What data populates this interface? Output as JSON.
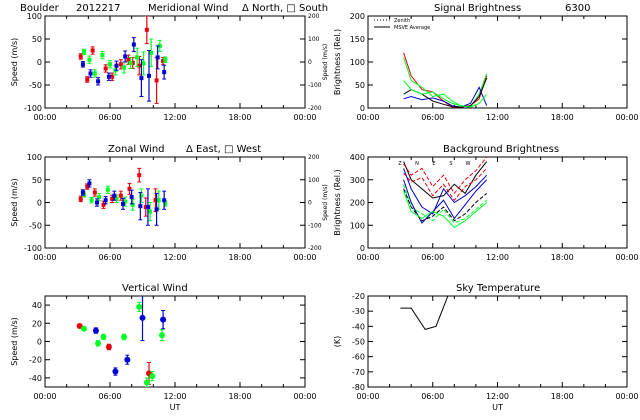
{
  "header": {
    "site": "Boulder",
    "date": "2012217",
    "meridional_title": "Meridional Wind",
    "meridional_legend": "Δ North, □ South"
  },
  "titles": {
    "zonal": "Zonal Wind",
    "zonal_legend": "Δ East, □ West",
    "vertical": "Vertical Wind",
    "signal": "Signal Brightness",
    "signal_wavelength": "6300",
    "background": "Background Brightness",
    "sky": "Sky Temperature"
  },
  "xaxis": {
    "label": "UT",
    "ticks": [
      "00:00",
      "06:00",
      "12:00",
      "18:00",
      "00:00"
    ]
  },
  "colors": {
    "red": "#e8000b",
    "green": "#00ff22",
    "blue": "#0000d0",
    "black": "#000000"
  },
  "chart_data": [
    {
      "id": "meridional",
      "type": "scatter",
      "title": "Meridional Wind",
      "ylabel": "Speed (m/s)",
      "y2label": "Speed (m/s)",
      "xlabel": "",
      "ylim": [
        -100,
        100
      ],
      "y2lim": [
        -200,
        200
      ],
      "yticks": [
        "100",
        "50",
        "0",
        "-50",
        "-100"
      ],
      "y2ticks": [
        "200",
        "100",
        "0",
        "-100",
        "-200"
      ],
      "series": [
        {
          "color": "red",
          "x": [
            3.3,
            3.9,
            4.4,
            5.6,
            6.2,
            7.0,
            7.7,
            8.1,
            8.7,
            9.4,
            10.3,
            10.9
          ],
          "y": [
            12,
            -38,
            25,
            -14,
            -32,
            -5,
            5,
            -2,
            -8,
            70,
            -40,
            2
          ],
          "err": [
            6,
            6,
            8,
            8,
            8,
            10,
            10,
            12,
            20,
            30,
            50,
            8
          ]
        },
        {
          "color": "green",
          "x": [
            3.6,
            4.1,
            4.6,
            5.3,
            6.0,
            6.5,
            7.3,
            7.9,
            8.5,
            9.1,
            9.8,
            10.6,
            11.1
          ],
          "y": [
            22,
            5,
            -25,
            15,
            -5,
            -18,
            -12,
            -2,
            10,
            -3,
            20,
            35,
            5
          ],
          "err": [
            6,
            8,
            8,
            8,
            8,
            10,
            12,
            12,
            20,
            25,
            30,
            12,
            6
          ]
        },
        {
          "color": "blue",
          "x": [
            3.5,
            4.2,
            4.9,
            5.9,
            6.6,
            7.4,
            8.2,
            8.9,
            9.6,
            10.4,
            11.0
          ],
          "y": [
            -5,
            -25,
            -42,
            -32,
            -8,
            12,
            38,
            -35,
            -30,
            10,
            -22
          ],
          "err": [
            6,
            8,
            8,
            8,
            10,
            12,
            15,
            40,
            55,
            25,
            15
          ]
        }
      ]
    },
    {
      "id": "zonal",
      "type": "scatter",
      "title": "Zonal Wind",
      "ylabel": "Speed (m/s)",
      "y2label": "Speed (m/s)",
      "xlabel": "",
      "ylim": [
        -100,
        100
      ],
      "y2lim": [
        -200,
        200
      ],
      "yticks": [
        "100",
        "50",
        "0",
        "-50",
        "-100"
      ],
      "y2ticks": [
        "200",
        "100",
        "0",
        "-100",
        "-200"
      ],
      "series": [
        {
          "color": "red",
          "x": [
            3.3,
            3.9,
            4.6,
            5.4,
            6.2,
            7.0,
            7.8,
            8.7,
            9.3,
            10.2
          ],
          "y": [
            8,
            35,
            22,
            -5,
            8,
            15,
            30,
            60,
            -10,
            5
          ],
          "err": [
            6,
            6,
            8,
            8,
            8,
            10,
            12,
            15,
            20,
            25
          ]
        },
        {
          "color": "green",
          "x": [
            3.6,
            4.3,
            5.0,
            5.8,
            6.6,
            7.4,
            8.1,
            8.9,
            9.7,
            10.5,
            11.1
          ],
          "y": [
            18,
            5,
            12,
            28,
            8,
            2,
            -5,
            15,
            -20,
            5,
            -2
          ],
          "err": [
            6,
            6,
            8,
            8,
            8,
            10,
            12,
            15,
            20,
            20,
            6
          ]
        },
        {
          "color": "blue",
          "x": [
            3.5,
            4.1,
            4.8,
            5.6,
            6.4,
            7.2,
            8.0,
            8.8,
            9.5,
            10.3,
            11.0
          ],
          "y": [
            22,
            42,
            0,
            5,
            15,
            -3,
            12,
            -8,
            -10,
            -15,
            5
          ],
          "err": [
            6,
            8,
            8,
            8,
            10,
            12,
            15,
            30,
            40,
            35,
            20
          ]
        }
      ]
    },
    {
      "id": "vertical",
      "type": "scatter",
      "title": "Vertical Wind",
      "ylabel": "Speed (m/s)",
      "xlabel": "UT",
      "ylim": [
        -50,
        50
      ],
      "yticks": [
        "40",
        "20",
        "0",
        "-20",
        "-40"
      ],
      "series": [
        {
          "color": "red",
          "x": [
            3.2,
            5.9,
            9.6
          ],
          "y": [
            17,
            -6,
            -35
          ],
          "err": [
            2,
            3,
            12
          ]
        },
        {
          "color": "green",
          "x": [
            3.6,
            4.9,
            5.4,
            7.3,
            8.7,
            9.4,
            9.9,
            10.8
          ],
          "y": [
            14,
            -2,
            5,
            5,
            38,
            -45,
            -38,
            7
          ],
          "err": [
            2,
            3,
            3,
            3,
            5,
            5,
            5,
            6
          ]
        },
        {
          "color": "blue",
          "x": [
            4.7,
            6.5,
            7.6,
            9.0,
            10.9
          ],
          "y": [
            12,
            -33,
            -20,
            26,
            24
          ],
          "err": [
            3,
            4,
            5,
            25,
            10
          ]
        }
      ]
    },
    {
      "id": "signal",
      "type": "line",
      "title": "Signal Brightness",
      "ylabel": "Brightness (Rel.)",
      "xlabel": "",
      "ylim": [
        0,
        200
      ],
      "yticks": [
        "200",
        "150",
        "100",
        "50",
        "0"
      ],
      "legend": [
        "Zenith",
        "MSVE Average"
      ],
      "legend_position": "top-left",
      "x": [
        3.3,
        4.0,
        5.0,
        6.0,
        7.0,
        7.8,
        8.6,
        9.5,
        10.3,
        11.0
      ],
      "series": [
        {
          "color": "red",
          "y": [
            120,
            70,
            40,
            35,
            15,
            2,
            2,
            5,
            20,
            70
          ]
        },
        {
          "color": "green",
          "y": [
            110,
            60,
            45,
            25,
            30,
            15,
            5,
            2,
            30,
            75
          ]
        },
        {
          "color": "blue",
          "y": [
            20,
            25,
            18,
            22,
            15,
            5,
            2,
            10,
            45,
            5
          ]
        },
        {
          "color": "black",
          "y": [
            30,
            40,
            30,
            15,
            8,
            3,
            2,
            5,
            25,
            65
          ]
        },
        {
          "color": "green",
          "y": [
            60,
            40,
            30,
            35,
            20,
            10,
            5,
            2,
            10,
            30
          ]
        }
      ]
    },
    {
      "id": "background",
      "type": "line",
      "title": "Background Brightness",
      "ylabel": "Brightness (Rel.)",
      "xlabel": "",
      "ylim": [
        0,
        400
      ],
      "yticks": [
        "400",
        "300",
        "200",
        "100",
        "0"
      ],
      "labels": [
        "Z",
        "N",
        "E",
        "S",
        "W"
      ],
      "x": [
        3.3,
        4.0,
        5.0,
        6.0,
        7.0,
        8.0,
        9.0,
        10.0,
        11.0
      ],
      "series": [
        {
          "color": "black",
          "y": [
            380,
            300,
            260,
            220,
            230,
            280,
            240,
            320,
            380
          ]
        },
        {
          "color": "red",
          "y": [
            370,
            320,
            350,
            270,
            320,
            240,
            300,
            340,
            400
          ]
        },
        {
          "color": "blue",
          "y": [
            350,
            260,
            180,
            150,
            260,
            200,
            230,
            270,
            320
          ]
        },
        {
          "color": "green",
          "y": [
            280,
            180,
            150,
            120,
            170,
            110,
            130,
            170,
            210
          ]
        },
        {
          "color": "blue",
          "y": [
            300,
            200,
            110,
            160,
            210,
            130,
            190,
            250,
            300
          ]
        },
        {
          "color": "black",
          "y": [
            260,
            180,
            120,
            140,
            180,
            120,
            150,
            200,
            240
          ]
        },
        {
          "color": "green",
          "y": [
            250,
            160,
            130,
            160,
            140,
            90,
            120,
            160,
            200
          ]
        },
        {
          "color": "red",
          "y": [
            330,
            290,
            310,
            230,
            280,
            210,
            270,
            300,
            350
          ]
        }
      ]
    },
    {
      "id": "sky",
      "type": "line",
      "title": "Sky Temperature",
      "ylabel": "(K)",
      "xlabel": "UT",
      "ylim": [
        -80,
        -20
      ],
      "yticks": [
        "-20",
        "-30",
        "-40",
        "-50",
        "-60",
        "-70",
        "-80"
      ],
      "series": [
        {
          "color": "black",
          "x": [
            3.0,
            4.0,
            5.3,
            6.3,
            7.4
          ],
          "y": [
            -28,
            -28,
            -42,
            -40,
            -20
          ]
        }
      ]
    }
  ]
}
